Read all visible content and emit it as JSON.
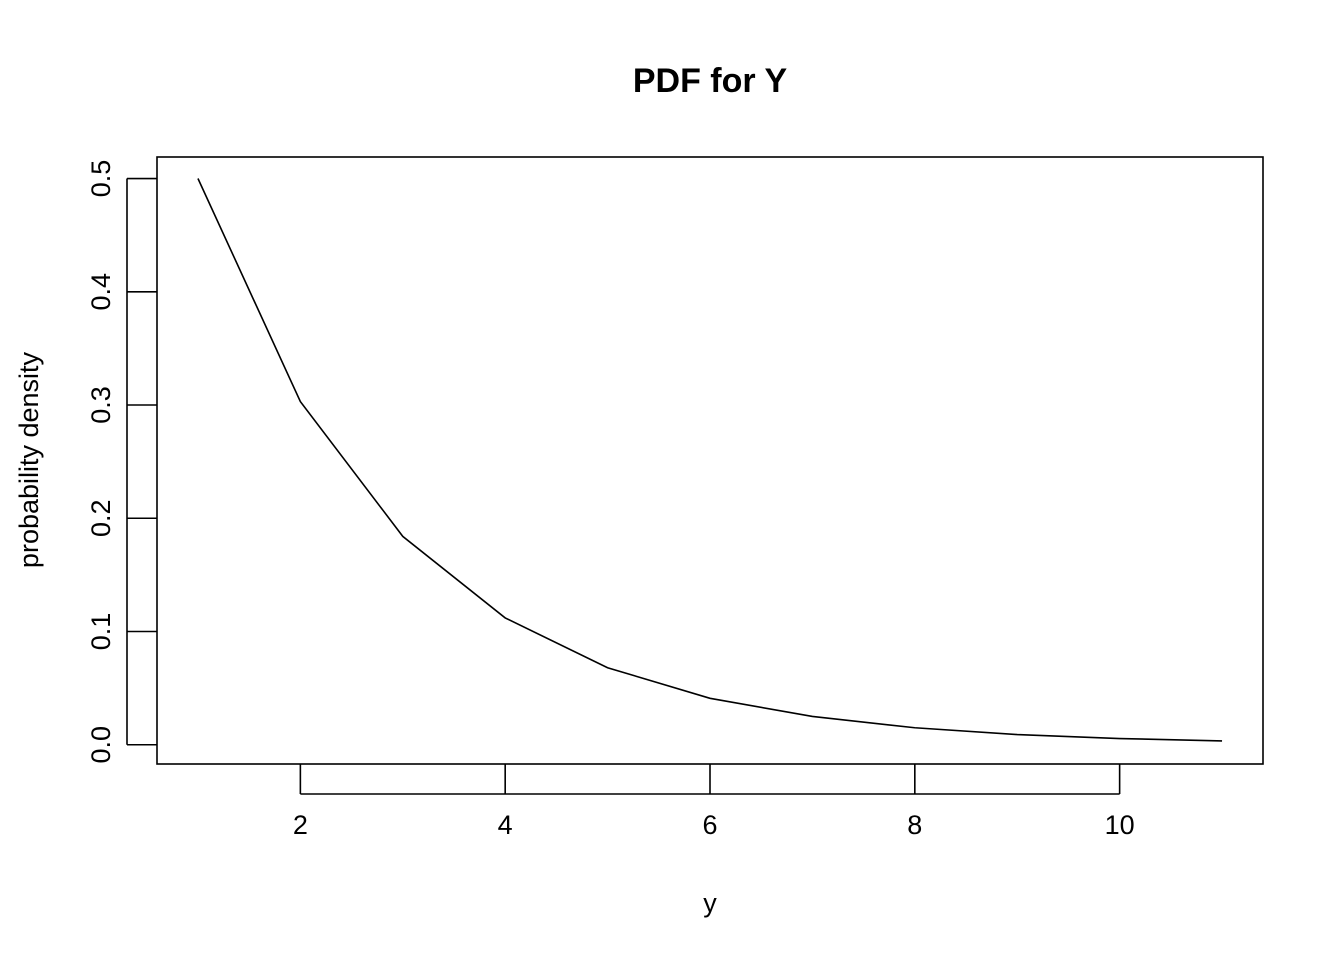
{
  "chart_data": {
    "type": "line",
    "title": "PDF for Y",
    "xlabel": "y",
    "ylabel": "probability density",
    "x": [
      1,
      2,
      3,
      4,
      5,
      6,
      7,
      8,
      9,
      10,
      11
    ],
    "series": [
      {
        "values": [
          0.5,
          0.303,
          0.184,
          0.112,
          0.068,
          0.041,
          0.025,
          0.015,
          0.009,
          0.0055,
          0.0034
        ]
      }
    ],
    "xlim": [
      0.6,
      11.4
    ],
    "ylim": [
      -0.017,
      0.519
    ],
    "xticks": [
      2,
      4,
      6,
      8,
      10
    ],
    "xtick_labels": [
      "2",
      "4",
      "6",
      "8",
      "10"
    ],
    "yticks": [
      0.0,
      0.1,
      0.2,
      0.3,
      0.4,
      0.5
    ],
    "ytick_labels": [
      "0.0",
      "0.1",
      "0.2",
      "0.3",
      "0.4",
      "0.5"
    ],
    "grid": false,
    "legend": "none",
    "line_color": "#000000"
  }
}
